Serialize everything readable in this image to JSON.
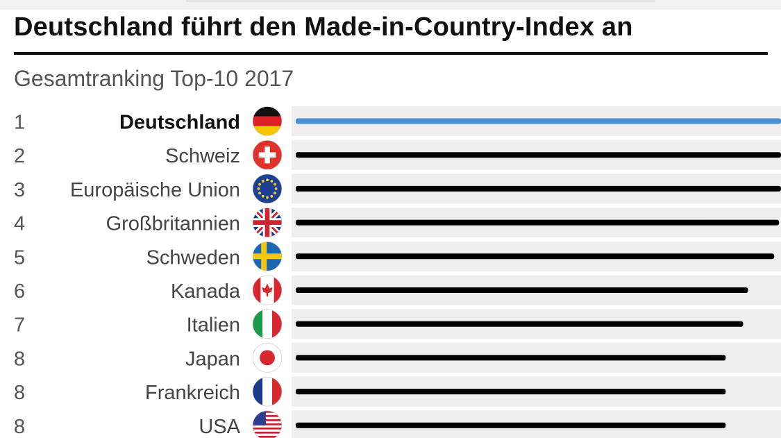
{
  "header": {
    "title": "Deutschland führt den Made-in-Country-Index an",
    "subtitle": "Gesamtranking Top-10 2017"
  },
  "colors": {
    "highlight_bar": "#4a8fd6",
    "bar": "#000000",
    "row_shade": "#eeeeee",
    "rank_text": "#555555",
    "label_text": "#444444"
  },
  "chart_data": {
    "type": "bar",
    "orientation": "horizontal",
    "title": "Deutschland führt den Made-in-Country-Index an",
    "subtitle": "Gesamtranking Top-10 2017",
    "categories": [
      "Deutschland",
      "Schweiz",
      "Europäische Union",
      "Großbritannien",
      "Schweden",
      "Kanada",
      "Italien",
      "Japan",
      "Frankreich",
      "USA"
    ],
    "ranks": [
      "1",
      "2",
      "3",
      "4",
      "5",
      "6",
      "7",
      "8",
      "8",
      "8"
    ],
    "values": [
      100,
      100,
      100,
      99.6,
      98.6,
      93.2,
      92.2,
      88.6,
      88.6,
      88.6
    ],
    "highlighted": "Deutschland",
    "flag_icons": [
      "flag-germany-icon",
      "flag-switzerland-icon",
      "flag-eu-icon",
      "flag-uk-icon",
      "flag-sweden-icon",
      "flag-canada-icon",
      "flag-italy-icon",
      "flag-japan-icon",
      "flag-france-icon",
      "flag-usa-icon"
    ],
    "xlim": [
      0,
      100
    ],
    "grid": false,
    "legend": "none"
  }
}
